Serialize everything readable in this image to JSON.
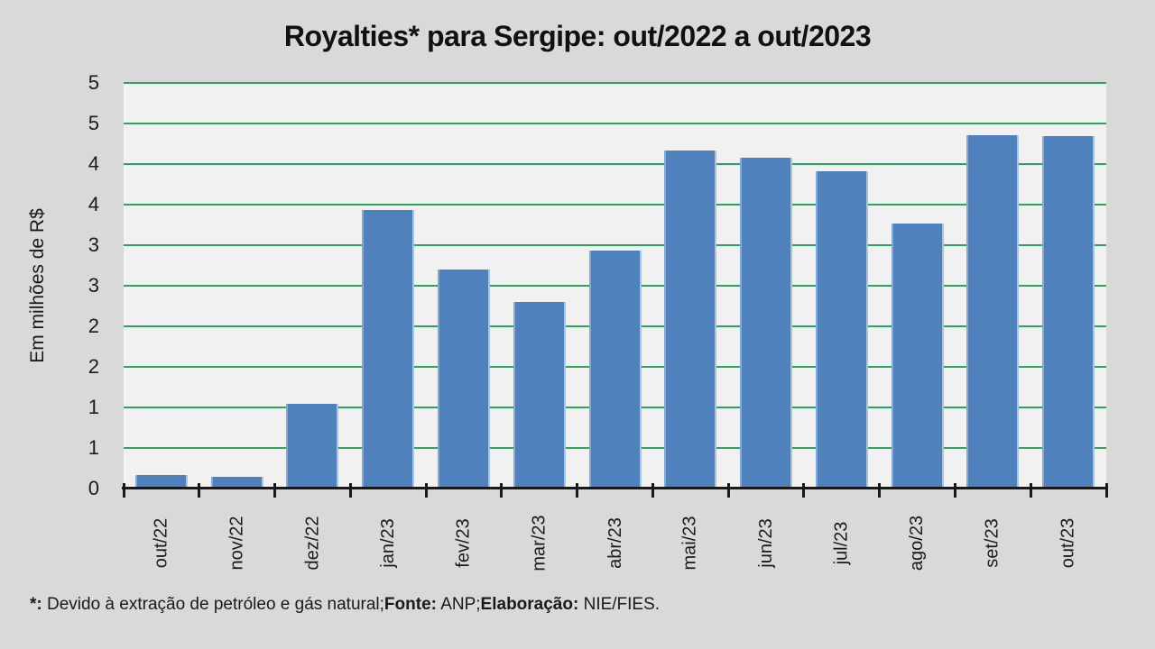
{
  "title": "Royalties* para Sergipe: out/2022 a out/2023",
  "footer": {
    "note_bold": "*:",
    "note_text": " Devido à extração de petróleo e gás natural;",
    "source_label": "Fonte:",
    "source_text": " ANP;",
    "elaboration_label": "Elaboração:",
    "elaboration_text": " NIE/FIES."
  },
  "chart_data": {
    "type": "bar",
    "title": "Royalties* para Sergipe: out/2022 a out/2023",
    "categories": [
      "out/22",
      "nov/22",
      "dez/22",
      "jan/23",
      "fev/23",
      "mar/23",
      "abr/23",
      "mai/23",
      "jun/23",
      "jul/23",
      "ago/23",
      "set/23",
      "out/23"
    ],
    "values": [
      0.17,
      0.15,
      1.04,
      3.43,
      2.7,
      2.3,
      2.93,
      4.17,
      4.08,
      3.91,
      3.27,
      4.36,
      4.34
    ],
    "xlabel": "",
    "ylabel": "Em milhões de R$",
    "ylim": [
      0,
      5
    ],
    "ytick_step": 0.5,
    "ytick_labels": [
      "0",
      "1",
      "1",
      "2",
      "2",
      "3",
      "3",
      "4",
      "4",
      "5",
      "5"
    ],
    "grid": true,
    "legend": "none",
    "colors": {
      "page_bg": "#d9d9d9",
      "plot_bg": "#f1f1f1",
      "gridline": "#28a65a",
      "bar_fill": "#4f81bd",
      "bar_edge_left": "#84a9d4",
      "bar_edge_right": "#aac5e4",
      "axis": "#1a1a1a",
      "text": "#1a1a1a"
    }
  }
}
